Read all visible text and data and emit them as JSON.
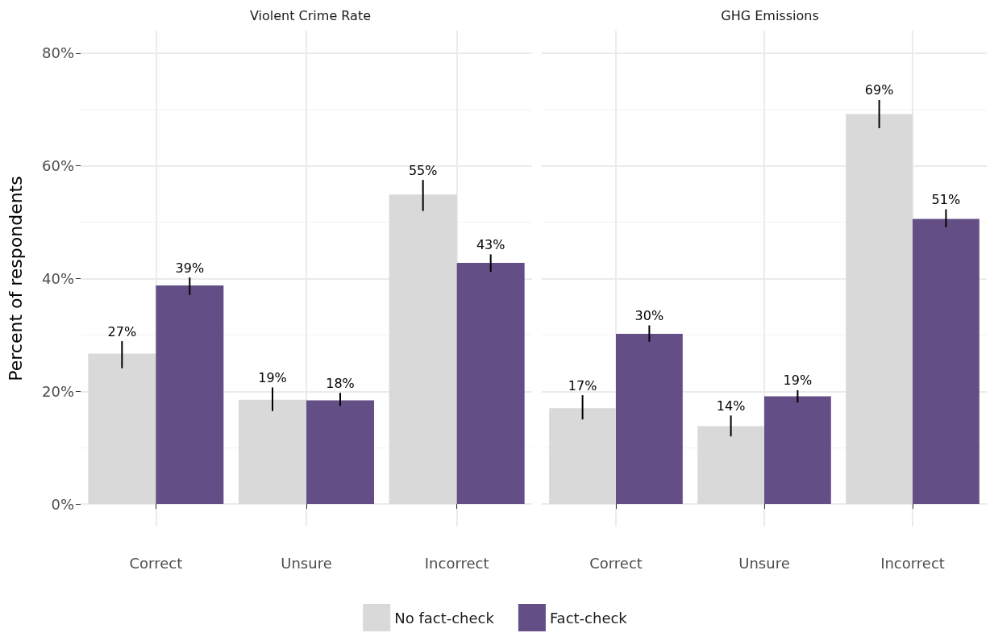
{
  "chart_data": [
    {
      "type": "bar",
      "title": "Violent Crime Rate",
      "ylabel": "Percent of respondents",
      "categories": [
        "Correct",
        "Unsure",
        "Incorrect"
      ],
      "ylim": [
        -4,
        84
      ],
      "yticks": [
        {
          "value": 0,
          "label": "0%"
        },
        {
          "value": 20,
          "label": "20%"
        },
        {
          "value": 40,
          "label": "40%"
        },
        {
          "value": 60,
          "label": "60%"
        },
        {
          "value": 80,
          "label": "80%"
        }
      ],
      "grid": true,
      "legend": "bottom",
      "series": [
        {
          "name": "No fact-check",
          "color": "#d9d9d9",
          "values": [
            26.7,
            18.5,
            54.9
          ],
          "errors": [
            [
              24.1,
              28.9
            ],
            [
              16.5,
              20.7
            ],
            [
              52.0,
              57.5
            ]
          ],
          "value_labels": [
            "27%",
            "19%",
            "55%"
          ]
        },
        {
          "name": "Fact-check",
          "color": "#634f86",
          "values": [
            38.8,
            18.4,
            42.8
          ],
          "errors": [
            [
              37.1,
              40.2
            ],
            [
              17.4,
              19.7
            ],
            [
              41.2,
              44.3
            ]
          ],
          "value_labels": [
            "39%",
            "18%",
            "43%"
          ]
        }
      ]
    },
    {
      "type": "bar",
      "title": "GHG Emissions",
      "categories": [
        "Correct",
        "Unsure",
        "Incorrect"
      ],
      "ylim": [
        -4,
        84
      ],
      "yticks": [
        0,
        20,
        40,
        60,
        80
      ],
      "grid": true,
      "tick_labels": "x",
      "series": [
        {
          "color": "#d9d9d9",
          "values": [
            17.0,
            13.8,
            69.2
          ],
          "errors": [
            [
              15.0,
              19.3
            ],
            [
              12.0,
              15.7
            ],
            [
              66.7,
              71.7
            ]
          ],
          "value_labels": [
            "17%",
            "14%",
            "69%"
          ]
        },
        {
          "color": "#634f86",
          "values": [
            30.2,
            19.1,
            50.6
          ],
          "errors": [
            [
              28.8,
              31.7
            ],
            [
              18.0,
              20.2
            ],
            [
              49.1,
              52.3
            ]
          ],
          "value_labels": [
            "30%",
            "19%",
            "51%"
          ]
        }
      ]
    }
  ]
}
